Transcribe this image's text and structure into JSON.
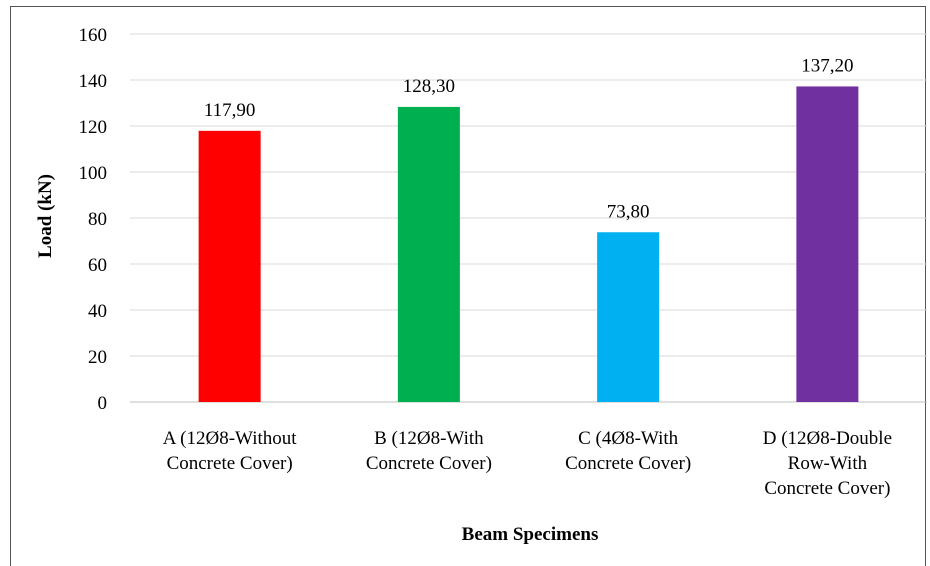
{
  "chart_data": {
    "type": "bar",
    "title": "",
    "xlabel": "Beam Specimens",
    "ylabel": "Load (kN)",
    "ylim": [
      0,
      160
    ],
    "ytick_step": 20,
    "yticks": [
      "0",
      "20",
      "40",
      "60",
      "80",
      "100",
      "120",
      "140",
      "160"
    ],
    "grid": true,
    "legend": "none",
    "categories": [
      [
        "A (12Ø8-Without",
        "Concrete Cover)"
      ],
      [
        "B (12Ø8-With",
        "Concrete Cover)"
      ],
      [
        "C (4Ø8-With",
        "Concrete Cover)"
      ],
      [
        "D (12Ø8-Double",
        "Row-With",
        "Concrete Cover)"
      ]
    ],
    "values": [
      117.9,
      128.3,
      73.8,
      137.2
    ],
    "value_labels": [
      "117,90",
      "128,30",
      "73,80",
      "137,20"
    ],
    "colors": [
      "#ff0000",
      "#00b050",
      "#00b0f0",
      "#7030a0"
    ]
  }
}
